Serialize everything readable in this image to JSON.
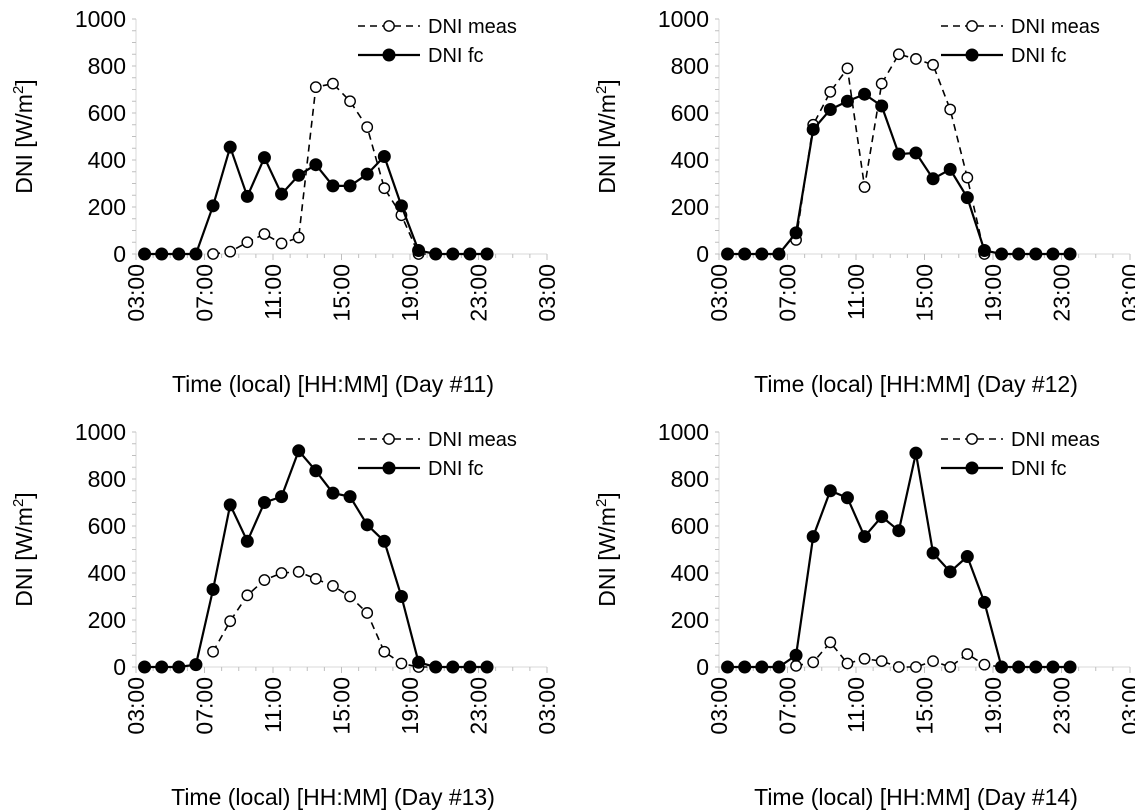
{
  "chart_data": [
    {
      "type": "line",
      "title": "",
      "xlabel": "Time (local) [HH:MM] (Day #11)",
      "ylabel": "DNI [W/m²]",
      "ylabel_parts": {
        "base": "DNI [W/m",
        "sup": "2",
        "end": "]"
      },
      "ylim": [
        0,
        1000
      ],
      "y_ticks": [
        "0",
        "200",
        "400",
        "600",
        "800",
        "1000"
      ],
      "x_ticks": [
        "03:00",
        "07:00",
        "11:00",
        "15:00",
        "19:00",
        "23:00",
        "03:00"
      ],
      "grid": false,
      "legend_position": "top-right",
      "series": [
        {
          "name": "DNI meas",
          "style": "dashed-open-circle",
          "x": [
            "07:30",
            "08:30",
            "09:30",
            "10:30",
            "11:30",
            "12:30",
            "13:30",
            "14:30",
            "15:30",
            "16:30",
            "17:30",
            "18:30",
            "19:30",
            "20:30",
            "21:30",
            "22:30",
            "23:30"
          ],
          "values": [
            0,
            10,
            50,
            85,
            45,
            70,
            710,
            725,
            650,
            540,
            280,
            165,
            0,
            0,
            0,
            0,
            0
          ]
        },
        {
          "name": "DNI fc",
          "style": "solid-filled-circle",
          "x": [
            "03:30",
            "04:30",
            "05:30",
            "06:30",
            "07:30",
            "08:30",
            "09:30",
            "10:30",
            "11:30",
            "12:30",
            "13:30",
            "14:30",
            "15:30",
            "16:30",
            "17:30",
            "18:30",
            "19:30",
            "20:30",
            "21:30",
            "22:30",
            "23:30"
          ],
          "values": [
            0,
            0,
            0,
            0,
            205,
            455,
            245,
            410,
            255,
            335,
            380,
            290,
            290,
            340,
            415,
            205,
            15,
            0,
            0,
            0,
            0
          ]
        }
      ]
    },
    {
      "type": "line",
      "title": "",
      "xlabel": "Time (local) [HH:MM] (Day #12)",
      "ylabel": "DNI [W/m²]",
      "ylabel_parts": {
        "base": "DNI [W/m",
        "sup": "2",
        "end": "]"
      },
      "ylim": [
        0,
        1000
      ],
      "y_ticks": [
        "0",
        "200",
        "400",
        "600",
        "800",
        "1000"
      ],
      "x_ticks": [
        "03:00",
        "07:00",
        "11:00",
        "15:00",
        "19:00",
        "23:00",
        "03:00"
      ],
      "grid": false,
      "legend_position": "top-right",
      "series": [
        {
          "name": "DNI meas",
          "style": "dashed-open-circle",
          "x": [
            "07:30",
            "08:30",
            "09:30",
            "10:30",
            "11:30",
            "12:30",
            "13:30",
            "14:30",
            "15:30",
            "16:30",
            "17:30",
            "18:30",
            "19:30",
            "20:30",
            "21:30",
            "22:30",
            "23:30"
          ],
          "values": [
            60,
            550,
            690,
            790,
            285,
            725,
            850,
            830,
            805,
            615,
            325,
            0,
            0,
            0,
            0,
            0,
            0
          ]
        },
        {
          "name": "DNI fc",
          "style": "solid-filled-circle",
          "x": [
            "03:30",
            "04:30",
            "05:30",
            "06:30",
            "07:30",
            "08:30",
            "09:30",
            "10:30",
            "11:30",
            "12:30",
            "13:30",
            "14:30",
            "15:30",
            "16:30",
            "17:30",
            "18:30",
            "19:30",
            "20:30",
            "21:30",
            "22:30",
            "23:30"
          ],
          "values": [
            0,
            0,
            0,
            0,
            90,
            530,
            615,
            650,
            680,
            630,
            425,
            430,
            320,
            360,
            240,
            15,
            0,
            0,
            0,
            0,
            0
          ]
        }
      ]
    },
    {
      "type": "line",
      "title": "",
      "xlabel": "Time (local) [HH:MM] (Day #13)",
      "ylabel": "DNI [W/m²]",
      "ylabel_parts": {
        "base": "DNI [W/m",
        "sup": "2",
        "end": "]"
      },
      "ylim": [
        0,
        1000
      ],
      "y_ticks": [
        "0",
        "200",
        "400",
        "600",
        "800",
        "1000"
      ],
      "x_ticks": [
        "03:00",
        "07:00",
        "11:00",
        "15:00",
        "19:00",
        "23:00",
        "03:00"
      ],
      "grid": false,
      "legend_position": "top-right",
      "series": [
        {
          "name": "DNI meas",
          "style": "dashed-open-circle",
          "x": [
            "07:30",
            "08:30",
            "09:30",
            "10:30",
            "11:30",
            "12:30",
            "13:30",
            "14:30",
            "15:30",
            "16:30",
            "17:30",
            "18:30",
            "19:30",
            "20:30",
            "21:30",
            "22:30",
            "23:30"
          ],
          "values": [
            65,
            195,
            305,
            370,
            400,
            405,
            375,
            345,
            300,
            230,
            65,
            15,
            0,
            0,
            0,
            0,
            0
          ]
        },
        {
          "name": "DNI fc",
          "style": "solid-filled-circle",
          "x": [
            "03:30",
            "04:30",
            "05:30",
            "06:30",
            "07:30",
            "08:30",
            "09:30",
            "10:30",
            "11:30",
            "12:30",
            "13:30",
            "14:30",
            "15:30",
            "16:30",
            "17:30",
            "18:30",
            "19:30",
            "20:30",
            "21:30",
            "22:30",
            "23:30"
          ],
          "values": [
            0,
            0,
            0,
            10,
            330,
            690,
            535,
            700,
            725,
            920,
            835,
            740,
            725,
            605,
            535,
            300,
            20,
            0,
            0,
            0,
            0
          ]
        }
      ]
    },
    {
      "type": "line",
      "title": "",
      "xlabel": "Time (local) [HH:MM] (Day #14)",
      "ylabel": "DNI [W/m²]",
      "ylabel_parts": {
        "base": "DNI [W/m",
        "sup": "2",
        "end": "]"
      },
      "ylim": [
        0,
        1000
      ],
      "y_ticks": [
        "0",
        "200",
        "400",
        "600",
        "800",
        "1000"
      ],
      "x_ticks": [
        "03:00",
        "07:00",
        "11:00",
        "15:00",
        "19:00",
        "23:00",
        "03:00"
      ],
      "grid": false,
      "legend_position": "top-right",
      "series": [
        {
          "name": "DNI meas",
          "style": "dashed-open-circle",
          "x": [
            "07:30",
            "08:30",
            "09:30",
            "10:30",
            "11:30",
            "12:30",
            "13:30",
            "14:30",
            "15:30",
            "16:30",
            "17:30",
            "18:30",
            "19:30",
            "20:30",
            "21:30",
            "22:30",
            "23:30"
          ],
          "values": [
            5,
            20,
            105,
            15,
            35,
            25,
            0,
            0,
            25,
            0,
            55,
            10,
            0,
            0,
            0,
            0,
            0
          ]
        },
        {
          "name": "DNI fc",
          "style": "solid-filled-circle",
          "x": [
            "03:30",
            "04:30",
            "05:30",
            "06:30",
            "07:30",
            "08:30",
            "09:30",
            "10:30",
            "11:30",
            "12:30",
            "13:30",
            "14:30",
            "15:30",
            "16:30",
            "17:30",
            "18:30",
            "19:30",
            "20:30",
            "21:30",
            "22:30",
            "23:30"
          ],
          "values": [
            0,
            0,
            0,
            0,
            50,
            555,
            750,
            720,
            555,
            640,
            580,
            910,
            485,
            405,
            470,
            275,
            0,
            0,
            0,
            0,
            0
          ]
        }
      ]
    }
  ]
}
